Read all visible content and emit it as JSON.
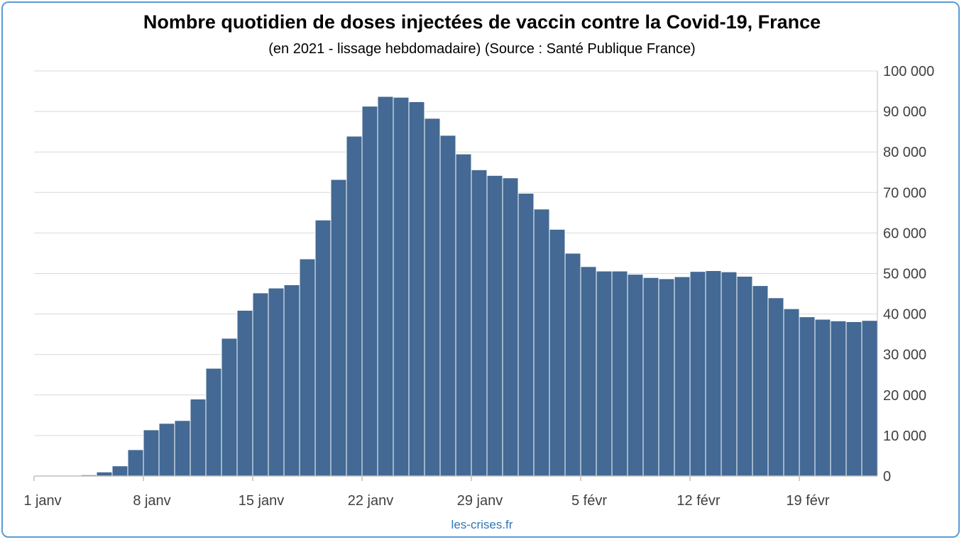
{
  "chart_data": {
    "type": "bar",
    "title": "Nombre quotidien de doses injectées de vaccin contre la Covid-19, France",
    "subtitle": "(en 2021 - lissage hebdomadaire) (Source : Santé Publique France)",
    "xlabel": "",
    "ylabel": "",
    "ylim": [
      0,
      100000
    ],
    "yticks": [
      0,
      10000,
      20000,
      30000,
      40000,
      50000,
      60000,
      70000,
      80000,
      90000,
      100000
    ],
    "ytick_labels": [
      "0",
      "10 000",
      "20 000",
      "30 000",
      "40 000",
      "50 000",
      "60 000",
      "70 000",
      "80 000",
      "90 000",
      "100 000"
    ],
    "y_axis_position": "right",
    "grid": "horizontal",
    "legend": "none",
    "bar_color": "#436994",
    "xtick_labels": [
      "1 janv",
      "8 janv",
      "15 janv",
      "22 janv",
      "29 janv",
      "5 févr",
      "12 févr",
      "19 févr"
    ],
    "categories": [
      "1 janv",
      "2 janv",
      "3 janv",
      "4 janv",
      "5 janv",
      "6 janv",
      "7 janv",
      "8 janv",
      "9 janv",
      "10 janv",
      "11 janv",
      "12 janv",
      "13 janv",
      "14 janv",
      "15 janv",
      "16 janv",
      "17 janv",
      "18 janv",
      "19 janv",
      "20 janv",
      "21 janv",
      "22 janv",
      "23 janv",
      "24 janv",
      "25 janv",
      "26 janv",
      "27 janv",
      "28 janv",
      "29 janv",
      "30 janv",
      "31 janv",
      "1 févr",
      "2 févr",
      "3 févr",
      "4 févr",
      "5 févr",
      "6 févr",
      "7 févr",
      "8 févr",
      "9 févr",
      "10 févr",
      "11 févr",
      "12 févr",
      "13 févr",
      "14 févr",
      "15 févr",
      "16 févr",
      "17 févr",
      "18 févr",
      "19 févr",
      "20 févr",
      "21 févr",
      "22 févr",
      "23 févr"
    ],
    "values": [
      50,
      80,
      100,
      300,
      1000,
      2500,
      6500,
      11400,
      13000,
      13700,
      19000,
      26600,
      34000,
      40900,
      45200,
      46400,
      47200,
      53600,
      63200,
      73200,
      83900,
      91300,
      93700,
      93500,
      92400,
      88300,
      84100,
      79500,
      75600,
      74200,
      73600,
      69800,
      65900,
      60900,
      55000,
      51700,
      50600,
      50600,
      49800,
      49000,
      48700,
      49200,
      50500,
      50700,
      50400,
      49300,
      47000,
      44000,
      41300,
      39300,
      38700,
      38300,
      38100,
      38400
    ]
  },
  "credit": "les-crises.fr"
}
